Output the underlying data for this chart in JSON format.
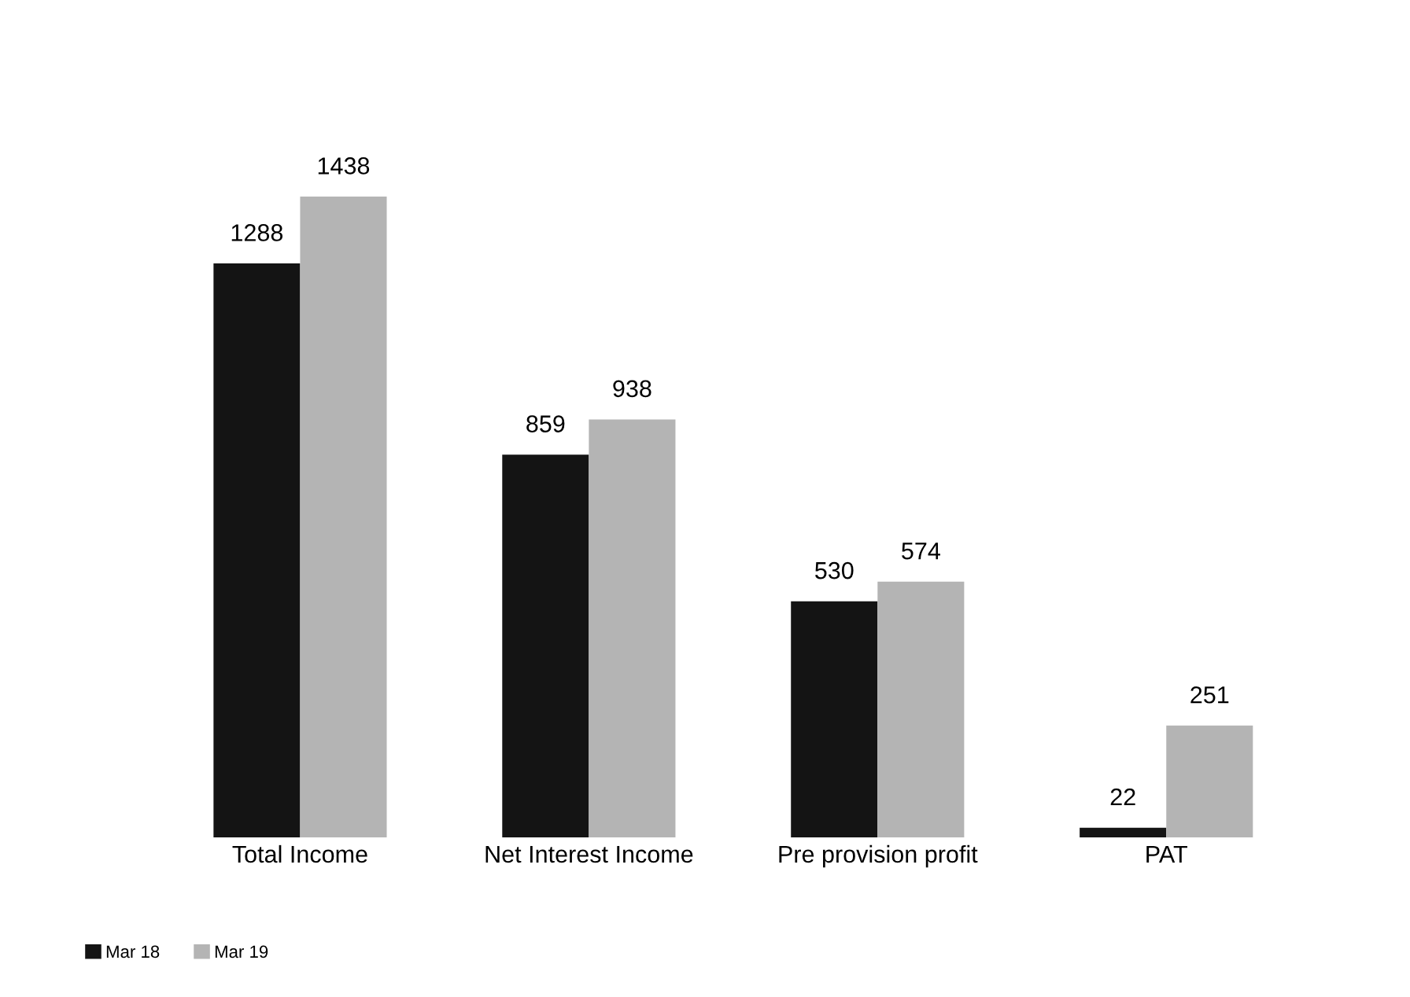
{
  "chart_data": {
    "type": "bar",
    "categories": [
      "Total Income",
      "Net Interest Income",
      "Pre provision profit",
      "PAT"
    ],
    "series": [
      {
        "name": "Mar 18",
        "color": "#141414",
        "values": [
          1288,
          859,
          530,
          22
        ]
      },
      {
        "name": "Mar 19",
        "color": "#b4b4b4",
        "values": [
          1438,
          938,
          574,
          251
        ]
      }
    ],
    "data_labels": true,
    "legend": "bottom left",
    "grid": false
  }
}
